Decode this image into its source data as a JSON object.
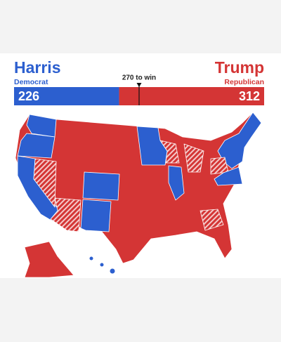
{
  "header": {
    "left": {
      "name": "Harris",
      "party": "Democrat",
      "votes": 226
    },
    "right": {
      "name": "Trump",
      "party": "Republican",
      "votes": 312
    },
    "threshold": "270 to win"
  }
}
